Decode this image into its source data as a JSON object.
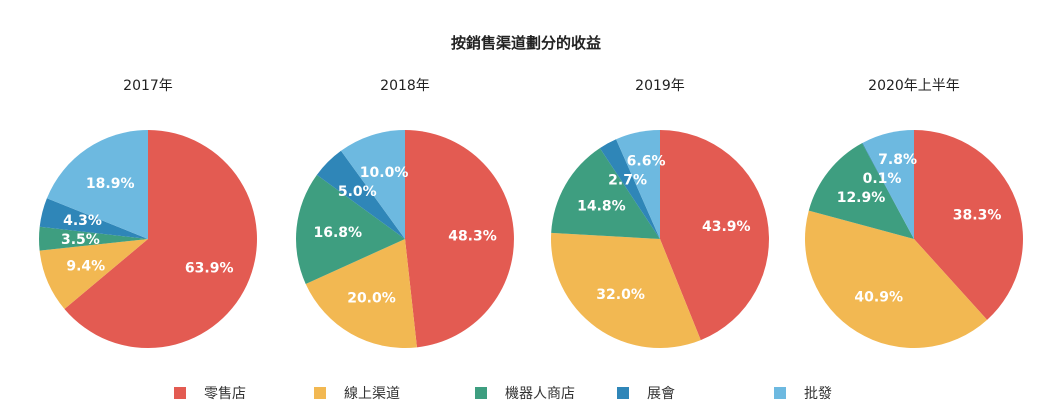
{
  "chart_data": {
    "type": "pie",
    "title": "按銷售渠道劃分的收益",
    "legend_position": "bottom",
    "legend": [
      {
        "name": "零售店",
        "color": "#e35b52"
      },
      {
        "name": "線上渠道",
        "color": "#f2b852"
      },
      {
        "name": "機器人商店",
        "color": "#3e9e80"
      },
      {
        "name": "展會",
        "color": "#2f86b8"
      },
      {
        "name": "批發",
        "color": "#6db9e0"
      }
    ],
    "pies": [
      {
        "title": "2017年",
        "slices": [
          {
            "name": "零售店",
            "value": 63.9,
            "label": "63.9%"
          },
          {
            "name": "線上渠道",
            "value": 9.4,
            "label": "9.4%"
          },
          {
            "name": "機器人商店",
            "value": 3.5,
            "label": "3.5%"
          },
          {
            "name": "展會",
            "value": 4.3,
            "label": "4.3%"
          },
          {
            "name": "批發",
            "value": 18.9,
            "label": "18.9%"
          }
        ]
      },
      {
        "title": "2018年",
        "slices": [
          {
            "name": "零售店",
            "value": 48.3,
            "label": "48.3%"
          },
          {
            "name": "線上渠道",
            "value": 20.0,
            "label": "20.0%"
          },
          {
            "name": "機器人商店",
            "value": 16.8,
            "label": "16.8%"
          },
          {
            "name": "展會",
            "value": 5.0,
            "label": "5.0%"
          },
          {
            "name": "批發",
            "value": 10.0,
            "label": "10.0%"
          }
        ]
      },
      {
        "title": "2019年",
        "slices": [
          {
            "name": "零售店",
            "value": 43.9,
            "label": "43.9%"
          },
          {
            "name": "線上渠道",
            "value": 32.0,
            "label": "32.0%"
          },
          {
            "name": "機器人商店",
            "value": 14.8,
            "label": "14.8%"
          },
          {
            "name": "展會",
            "value": 2.7,
            "label": "2.7%"
          },
          {
            "name": "批發",
            "value": 6.6,
            "label": "6.6%"
          }
        ]
      },
      {
        "title": "2020年上半年",
        "slices": [
          {
            "name": "零售店",
            "value": 38.3,
            "label": "38.3%"
          },
          {
            "name": "線上渠道",
            "value": 40.9,
            "label": "40.9%"
          },
          {
            "name": "機器人商店",
            "value": 12.9,
            "label": "12.9%"
          },
          {
            "name": "展會",
            "value": 0.1,
            "label": "0.1%"
          },
          {
            "name": "批發",
            "value": 7.8,
            "label": "7.8%"
          }
        ]
      }
    ]
  }
}
